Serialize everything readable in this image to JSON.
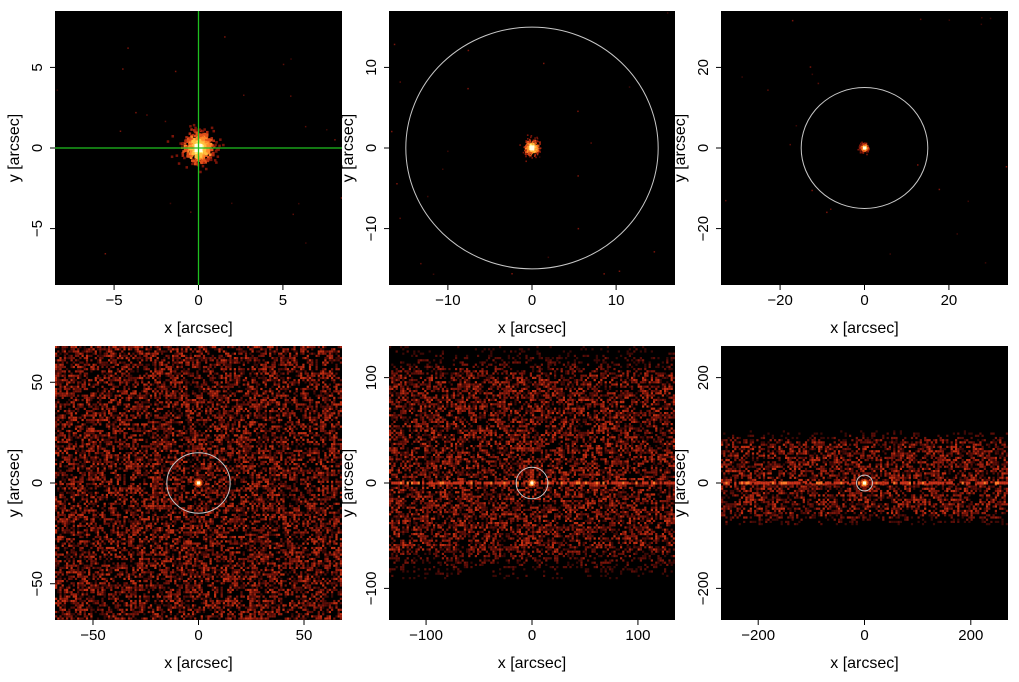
{
  "figure": {
    "colors": {
      "background": "#000000",
      "ring": "#c8c8c8",
      "crosshair": "#1fbf1f",
      "halo": "#8a1a10",
      "core": "#ffffe6",
      "scatter": "#d23a14"
    }
  },
  "chart_data": [
    {
      "type": "heatmap",
      "panel": "top-left",
      "xlabel": "x [arcsec]",
      "ylabel": "y [arcsec]",
      "xlim": [
        -8.5,
        8.5
      ],
      "ylim": [
        -8.5,
        8.5
      ],
      "xticks": [
        -5,
        0,
        5
      ],
      "yticks": [
        -5,
        0,
        5
      ],
      "xtick_labels": [
        "−5",
        "0",
        "5"
      ],
      "ytick_labels": [
        "−5",
        "0",
        "5"
      ],
      "source_center": [
        0,
        0
      ],
      "source_radius_arcsec": 1.0,
      "ring_radius_arcsec": null,
      "crosshair": true,
      "background_level": "very low",
      "streak": false
    },
    {
      "type": "heatmap",
      "panel": "top-middle",
      "xlabel": "x [arcsec]",
      "ylabel": "y [arcsec]",
      "xlim": [
        -17,
        17
      ],
      "ylim": [
        -17,
        17
      ],
      "xticks": [
        -10,
        0,
        10
      ],
      "yticks": [
        -10,
        0,
        10
      ],
      "xtick_labels": [
        "−10",
        "0",
        "10"
      ],
      "ytick_labels": [
        "−10",
        "0",
        "10"
      ],
      "source_center": [
        0,
        0
      ],
      "source_radius_arcsec": 1.0,
      "ring_radius_arcsec": 15,
      "crosshair": false,
      "background_level": "very low",
      "streak": false
    },
    {
      "type": "heatmap",
      "panel": "top-right",
      "xlabel": "x [arcsec]",
      "ylabel": "y [arcsec]",
      "xlim": [
        -34,
        34
      ],
      "ylim": [
        -34,
        34
      ],
      "xticks": [
        -20,
        0,
        20
      ],
      "yticks": [
        -20,
        0,
        20
      ],
      "xtick_labels": [
        "−20",
        "0",
        "20"
      ],
      "ytick_labels": [
        "−20",
        "0",
        "20"
      ],
      "source_center": [
        0,
        0
      ],
      "source_radius_arcsec": 1.0,
      "ring_radius_arcsec": 15,
      "crosshair": false,
      "background_level": "very low",
      "streak": false
    },
    {
      "type": "heatmap",
      "panel": "bottom-left",
      "xlabel": "x [arcsec]",
      "ylabel": "y [arcsec]",
      "xlim": [
        -68,
        68
      ],
      "ylim": [
        -68,
        68
      ],
      "xticks": [
        -50,
        0,
        50
      ],
      "yticks": [
        -50,
        0,
        50
      ],
      "xtick_labels": [
        "−50",
        "0",
        "50"
      ],
      "ytick_labels": [
        "−50",
        "0",
        "50"
      ],
      "source_center": [
        0,
        0
      ],
      "source_radius_arcsec": 1.0,
      "ring_radius_arcsec": 15,
      "crosshair": false,
      "background_level": "uniform",
      "streak": false
    },
    {
      "type": "heatmap",
      "panel": "bottom-middle",
      "xlabel": "x [arcsec]",
      "ylabel": "y [arcsec]",
      "xlim": [
        -135,
        135
      ],
      "ylim": [
        -130,
        130
      ],
      "xticks": [
        -100,
        0,
        100
      ],
      "yticks": [
        -100,
        0,
        100
      ],
      "xtick_labels": [
        "−100",
        "0",
        "100"
      ],
      "ytick_labels": [
        "−100",
        "0",
        "100"
      ],
      "source_center": [
        0,
        0
      ],
      "source_radius_arcsec": 1.0,
      "ring_radius_arcsec": 15,
      "crosshair": false,
      "background_level": "band",
      "band_y_range": [
        -90,
        130
      ],
      "streak": true
    },
    {
      "type": "heatmap",
      "panel": "bottom-right",
      "xlabel": "x [arcsec]",
      "ylabel": "y [arcsec]",
      "xlim": [
        -270,
        270
      ],
      "ylim": [
        -260,
        260
      ],
      "xticks": [
        -200,
        0,
        200
      ],
      "yticks": [
        -200,
        0,
        200
      ],
      "xtick_labels": [
        "−200",
        "0",
        "200"
      ],
      "ytick_labels": [
        "−200",
        "0",
        "200"
      ],
      "source_center": [
        0,
        0
      ],
      "source_radius_arcsec": 1.0,
      "ring_radius_arcsec": 15,
      "crosshair": false,
      "background_level": "band",
      "band_y_range": [
        -80,
        100
      ],
      "streak": true
    }
  ]
}
